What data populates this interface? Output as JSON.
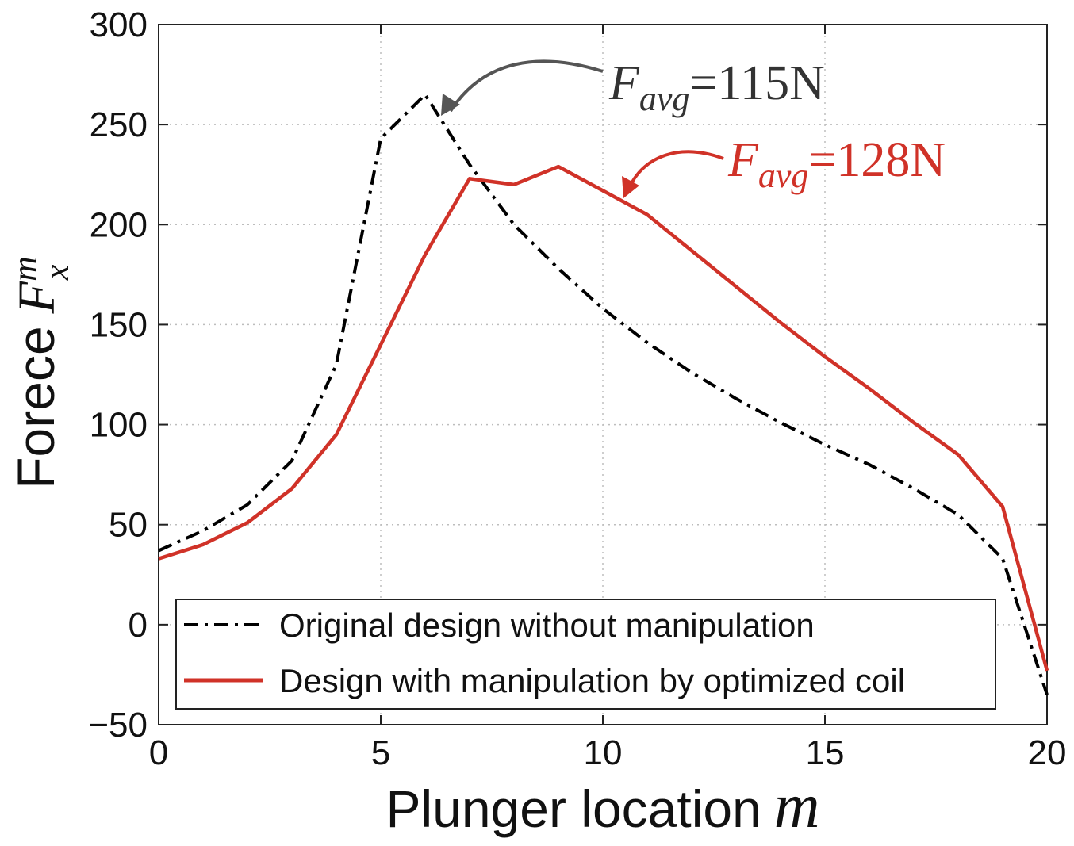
{
  "chart_data": {
    "type": "line",
    "xlabel": "Plunger location",
    "xlabel_symbol": "m",
    "ylabel": "Forece",
    "ylabel_symbol": "F",
    "ylabel_sup": "m",
    "ylabel_sub": "x",
    "xlim": [
      0,
      20
    ],
    "ylim": [
      -50,
      300
    ],
    "xticks": [
      "0",
      "5",
      "10",
      "15",
      "20"
    ],
    "yticks": [
      "−50",
      "0",
      "50",
      "100",
      "150",
      "200",
      "250",
      "300"
    ],
    "grid": true,
    "legend_position": "bottom-left",
    "series": [
      {
        "name": "Original design without manipulation",
        "color": "#000000",
        "style": "dash-dot",
        "x": [
          0,
          1,
          2,
          3,
          4,
          5,
          6,
          7,
          8,
          9,
          10,
          11,
          12,
          13,
          14,
          15,
          16,
          17,
          18,
          19,
          20
        ],
        "y": [
          37,
          47,
          60,
          82,
          130,
          243,
          265,
          230,
          200,
          178,
          158,
          141,
          126,
          113,
          101,
          90,
          80,
          68,
          55,
          33,
          -35
        ]
      },
      {
        "name": "Design with manipulation by optimized coil",
        "color": "#d03228",
        "style": "solid",
        "x": [
          0,
          1,
          2,
          3,
          4,
          5,
          6,
          7,
          8,
          9,
          10,
          11,
          12,
          13,
          14,
          15,
          16,
          17,
          18,
          19,
          20
        ],
        "y": [
          33,
          40,
          51,
          68,
          95,
          140,
          185,
          223,
          220,
          229,
          217,
          205,
          187,
          169,
          151,
          134,
          118,
          101,
          85,
          59,
          -23
        ]
      }
    ],
    "annotations": [
      {
        "label": "F",
        "sub": "avg",
        "text": "=115N",
        "color": "#333333",
        "points_to": [
          6,
          265
        ]
      },
      {
        "label": "F",
        "sub": "avg",
        "text": "=128N",
        "color": "#d03228",
        "points_to": [
          10,
          217
        ]
      }
    ]
  }
}
